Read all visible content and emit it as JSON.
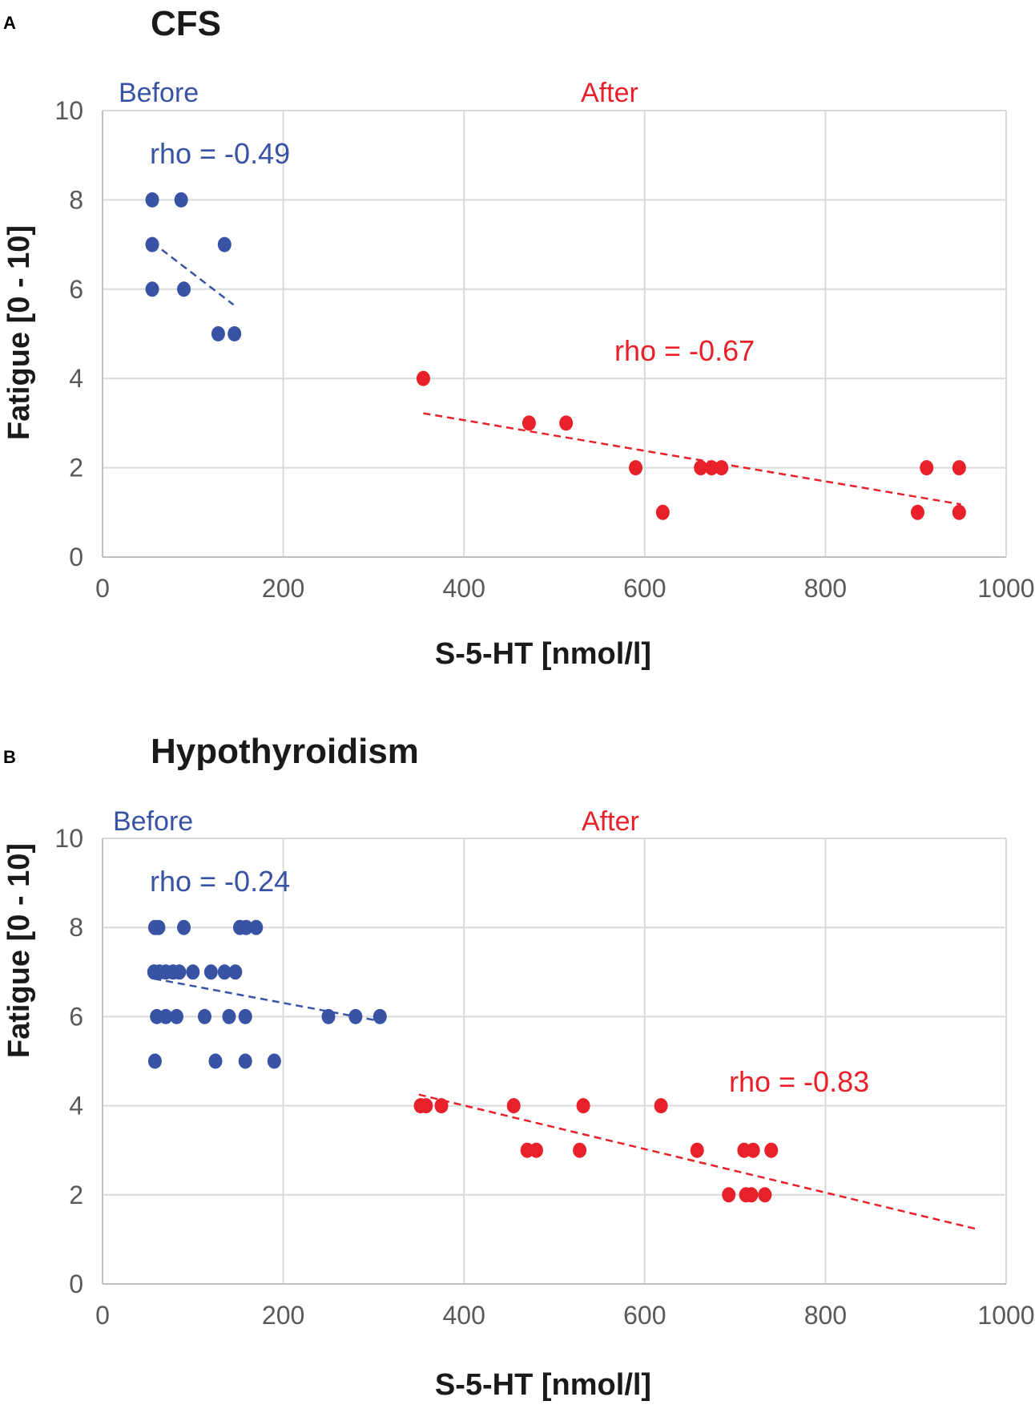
{
  "chart_data": [
    {
      "type": "scatter",
      "panel_label": "A",
      "title": "CFS",
      "xlabel": "S-5-HT [nmol/l]",
      "ylabel": "Fatigue [0 - 10]",
      "xlim": [
        0,
        1000
      ],
      "ylim": [
        0,
        10
      ],
      "xticks": [
        "0",
        "200",
        "400",
        "600",
        "800",
        "1000"
      ],
      "yticks": [
        "0",
        "2",
        "4",
        "6",
        "8",
        "10"
      ],
      "grid": true,
      "series": [
        {
          "name": "Before",
          "color": "#3953a4",
          "rho_label": "rho = -0.49",
          "points": [
            [
              55,
              8
            ],
            [
              87,
              8
            ],
            [
              55,
              7
            ],
            [
              135,
              7
            ],
            [
              55,
              6
            ],
            [
              90,
              6
            ],
            [
              128,
              5
            ],
            [
              146,
              5
            ]
          ],
          "trend": [
            [
              55,
              7.05
            ],
            [
              145,
              5.65
            ]
          ]
        },
        {
          "name": "After",
          "color": "#e8202a",
          "rho_label": "rho = -0.67",
          "points": [
            [
              355,
              4
            ],
            [
              472,
              3
            ],
            [
              513,
              3
            ],
            [
              590,
              2
            ],
            [
              662,
              2
            ],
            [
              674,
              2
            ],
            [
              685,
              2
            ],
            [
              620,
              1
            ],
            [
              912,
              2
            ],
            [
              948,
              2
            ],
            [
              902,
              1
            ],
            [
              948,
              1
            ]
          ],
          "trend": [
            [
              355,
              3.22
            ],
            [
              950,
              1.18
            ]
          ]
        }
      ]
    },
    {
      "type": "scatter",
      "panel_label": "B",
      "title": "Hypothyroidism",
      "xlabel": "S-5-HT [nmol/l]",
      "ylabel": "Fatigue [0 - 10]",
      "xlim": [
        0,
        1000
      ],
      "ylim": [
        0,
        10
      ],
      "xticks": [
        "0",
        "200",
        "400",
        "600",
        "800",
        "1000"
      ],
      "yticks": [
        "0",
        "2",
        "4",
        "6",
        "8",
        "10"
      ],
      "grid": true,
      "series": [
        {
          "name": "Before",
          "color": "#3953a4",
          "rho_label": "rho = -0.24",
          "points": [
            [
              58,
              8
            ],
            [
              62,
              8
            ],
            [
              90,
              8
            ],
            [
              152,
              8
            ],
            [
              159,
              8
            ],
            [
              170,
              8
            ],
            [
              57,
              7
            ],
            [
              63,
              7
            ],
            [
              70,
              7
            ],
            [
              78,
              7
            ],
            [
              85,
              7
            ],
            [
              100,
              7
            ],
            [
              120,
              7
            ],
            [
              135,
              7
            ],
            [
              147,
              7
            ],
            [
              60,
              6
            ],
            [
              70,
              6
            ],
            [
              82,
              6
            ],
            [
              113,
              6
            ],
            [
              140,
              6
            ],
            [
              158,
              6
            ],
            [
              250,
              6
            ],
            [
              280,
              6
            ],
            [
              307,
              6
            ],
            [
              58,
              5
            ],
            [
              125,
              5
            ],
            [
              158,
              5
            ],
            [
              190,
              5
            ]
          ],
          "trend": [
            [
              57,
              6.85
            ],
            [
              307,
              5.9
            ]
          ]
        },
        {
          "name": "After",
          "color": "#e8202a",
          "rho_label": "rho = -0.83",
          "points": [
            [
              352,
              4
            ],
            [
              358,
              4
            ],
            [
              375,
              4
            ],
            [
              455,
              4
            ],
            [
              532,
              4
            ],
            [
              618,
              4
            ],
            [
              470,
              3
            ],
            [
              480,
              3
            ],
            [
              528,
              3
            ],
            [
              658,
              3
            ],
            [
              710,
              3
            ],
            [
              720,
              3
            ],
            [
              740,
              3
            ],
            [
              693,
              2
            ],
            [
              712,
              2
            ],
            [
              718,
              2
            ],
            [
              733,
              2
            ]
          ],
          "trend": [
            [
              350,
              4.25
            ],
            [
              970,
              1.22
            ]
          ]
        }
      ]
    }
  ]
}
